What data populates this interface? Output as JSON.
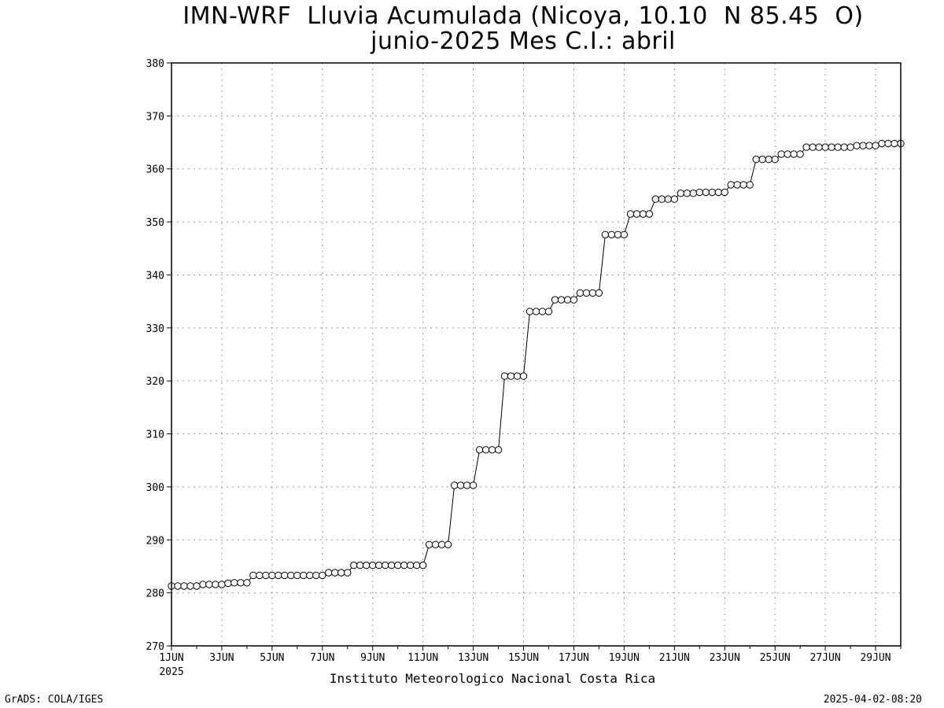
{
  "header": {
    "title_line1": "IMN-WRF  Lluvia Acumulada (Nicoya, 10.10  N 85.45  O)",
    "title_line2": "junio-2025 Mes C.I.: abril"
  },
  "footer": {
    "institution": "Instituto Meteorologico Nacional Costa Rica",
    "software": "GrADS: COLA/IGES",
    "timestamp": "2025-04-02-08:20"
  },
  "chart_data": {
    "type": "line",
    "title": "IMN-WRF  Lluvia Acumulada (Nicoya, 10.10  N 85.45  O)",
    "subtitle": "junio-2025 Mes C.I.: abril",
    "xlabel": "",
    "ylabel": "",
    "x_unit": "6-hourly steps from 1JUN 2025 00Z",
    "xlim_days": [
      1,
      30
    ],
    "ylim": [
      270,
      380
    ],
    "yticks": [
      270,
      280,
      290,
      300,
      310,
      320,
      330,
      340,
      350,
      360,
      370,
      380
    ],
    "xtick_labels": [
      "1JUN",
      "3JUN",
      "5JUN",
      "7JUN",
      "9JUN",
      "11JUN",
      "13JUN",
      "15JUN",
      "17JUN",
      "19JUN",
      "21JUN",
      "23JUN",
      "25JUN",
      "27JUN",
      "29JUN"
    ],
    "xtick_year_label": "2025",
    "grid": true,
    "marker": "open-circle",
    "series": [
      {
        "values": [
          281.3,
          281.3,
          281.3,
          281.3,
          281.3,
          281.6,
          281.6,
          281.6,
          281.6,
          281.8,
          281.9,
          281.9,
          281.9,
          283.3,
          283.3,
          283.3,
          283.3,
          283.3,
          283.3,
          283.3,
          283.3,
          283.3,
          283.3,
          283.3,
          283.3,
          283.8,
          283.8,
          283.8,
          283.8,
          285.2,
          285.2,
          285.2,
          285.2,
          285.2,
          285.2,
          285.2,
          285.2,
          285.2,
          285.2,
          285.2,
          285.2,
          289.1,
          289.1,
          289.1,
          289.1,
          300.3,
          300.3,
          300.3,
          300.3,
          307.0,
          307.0,
          307.0,
          307.0,
          320.9,
          320.9,
          320.9,
          320.9,
          333.1,
          333.1,
          333.1,
          333.1,
          335.3,
          335.3,
          335.3,
          335.3,
          336.6,
          336.6,
          336.6,
          336.6,
          347.6,
          347.6,
          347.6,
          347.6,
          351.5,
          351.5,
          351.5,
          351.5,
          354.3,
          354.3,
          354.3,
          354.3,
          355.4,
          355.4,
          355.4,
          355.6,
          355.6,
          355.6,
          355.6,
          355.6,
          357.0,
          357.0,
          357.0,
          357.0,
          361.8,
          361.8,
          361.8,
          361.8,
          362.8,
          362.8,
          362.8,
          362.8,
          364.1,
          364.1,
          364.1,
          364.1,
          364.1,
          364.1,
          364.1,
          364.1,
          364.4,
          364.4,
          364.4,
          364.4,
          364.8,
          364.8,
          364.8,
          364.8
        ]
      }
    ]
  }
}
